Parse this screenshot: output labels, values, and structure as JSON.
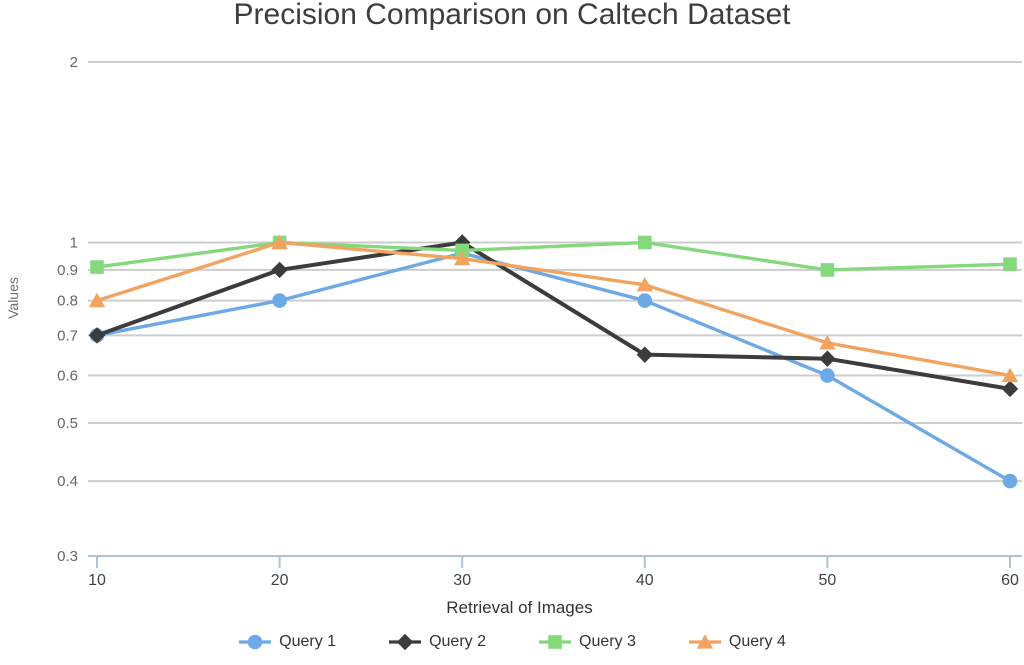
{
  "title": "Precision Comparison on Caltech Dataset",
  "colors": {
    "grid": "#cdcdcd",
    "axis": "#aec4d6",
    "y_tick_label": "#666666",
    "x_tick_label": "#414141",
    "title_text": "#3d3d3d",
    "axis_title_text": "#333333"
  },
  "chart_data": {
    "type": "line",
    "title": "Precision Comparison on Caltech Dataset",
    "xlabel": "Retrieval of Images",
    "ylabel": "Values",
    "x": [
      10,
      20,
      30,
      40,
      50,
      60
    ],
    "x_tick_labels": [
      "10",
      "20",
      "30",
      "40",
      "50",
      "60"
    ],
    "y_scale": "log",
    "ylim": [
      0.3,
      2
    ],
    "y_tick_labels": [
      "2",
      "1",
      "0.9",
      "0.8",
      "0.7",
      "0.6",
      "0.5",
      "0.4",
      "0.3"
    ],
    "grid": true,
    "legend_position": "bottom",
    "series": [
      {
        "name": "Query 1",
        "marker": "circle",
        "color": "#6da9e4",
        "values": [
          0.7,
          0.8,
          0.96,
          0.8,
          0.6,
          0.4
        ]
      },
      {
        "name": "Query 2",
        "marker": "diamond",
        "color": "#3c3c3c",
        "values": [
          0.7,
          0.9,
          1.0,
          0.65,
          0.64,
          0.57
        ]
      },
      {
        "name": "Query 3",
        "marker": "square",
        "color": "#86d87d",
        "values": [
          0.91,
          1.0,
          0.97,
          1.0,
          0.9,
          0.92
        ]
      },
      {
        "name": "Query 4",
        "marker": "triangle",
        "color": "#f1a35f",
        "values": [
          0.8,
          1.0,
          0.94,
          0.85,
          0.68,
          0.6
        ]
      }
    ]
  }
}
